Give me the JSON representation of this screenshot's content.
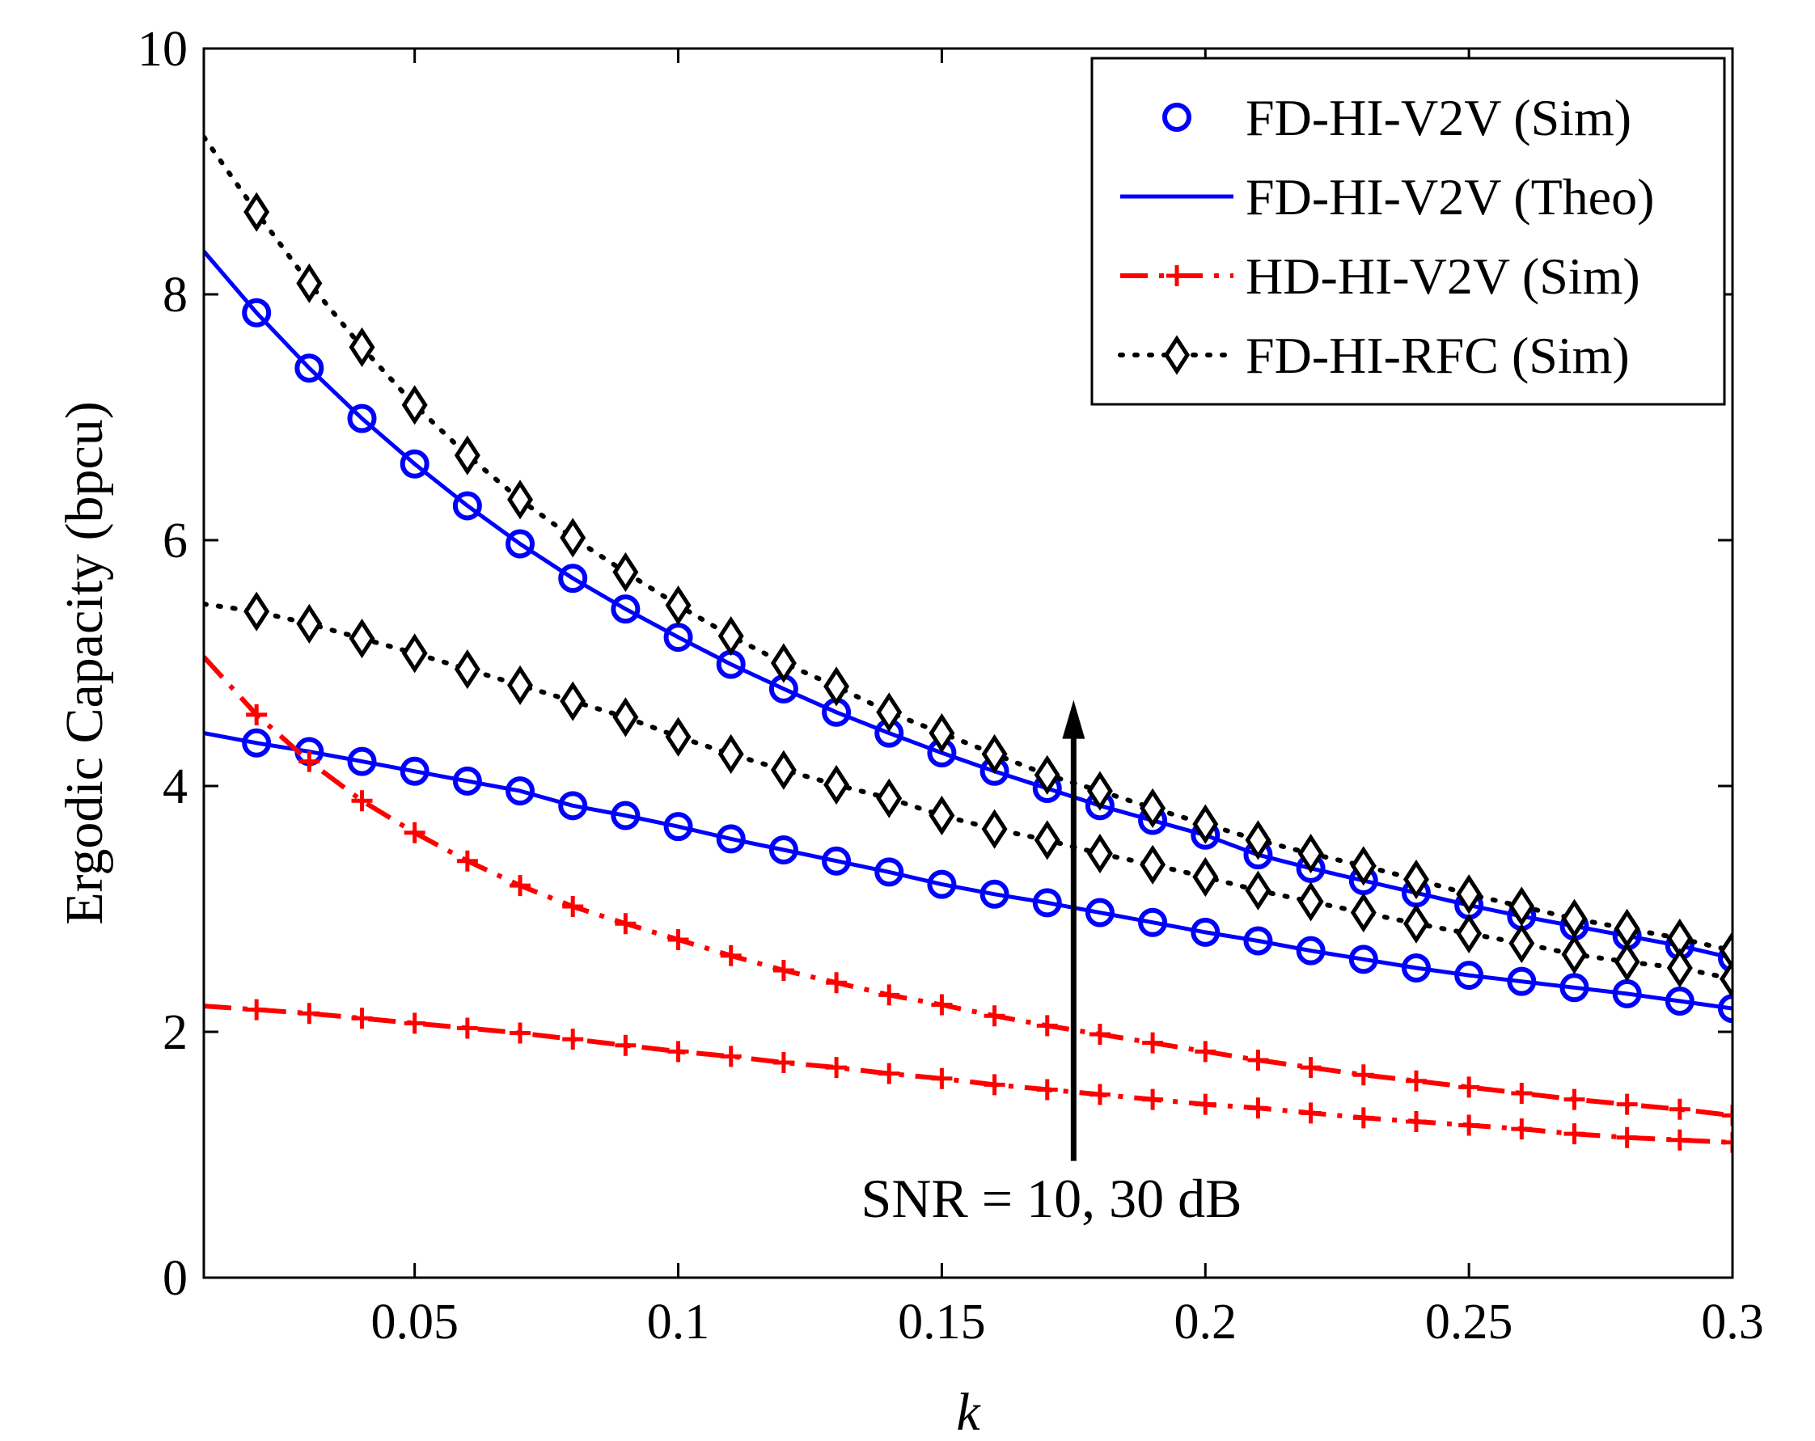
{
  "chart_data": {
    "type": "line",
    "title": "",
    "xlabel": "k",
    "ylabel": "Ergodic Capacity (bpcu)",
    "xlim": [
      0.01,
      0.3
    ],
    "ylim": [
      0,
      10
    ],
    "xticks": [
      0.05,
      0.1,
      0.15,
      0.2,
      0.25,
      0.3
    ],
    "xtick_labels": [
      "0.05",
      "0.1",
      "0.15",
      "0.2",
      "0.25",
      "0.3"
    ],
    "yticks": [
      0,
      2,
      4,
      6,
      8,
      10
    ],
    "ytick_labels": [
      "0",
      "2",
      "4",
      "6",
      "8",
      "10"
    ],
    "grid": false,
    "legend_position": "top-right",
    "legend": [
      {
        "label": "FD-HI-V2V (Sim)",
        "color": "#0000ff",
        "line": "none",
        "marker": "circle"
      },
      {
        "label": "FD-HI-V2V (Theo)",
        "color": "#0000ff",
        "line": "solid",
        "marker": "none"
      },
      {
        "label": "HD-HI-V2V (Sim)",
        "color": "#ff0000",
        "line": "dashdot",
        "marker": "plus"
      },
      {
        "label": "FD-HI-RFC (Sim)",
        "color": "#000000",
        "line": "dotted",
        "marker": "diamond"
      }
    ],
    "annotation": {
      "text": "SNR = 10, 30 dB",
      "arrow_x": 0.175,
      "arrow_from_y": 0.95,
      "arrow_to_y": 4.7
    },
    "x_curve": [
      0.01,
      0.02,
      0.03,
      0.04,
      0.05,
      0.06,
      0.07,
      0.08,
      0.09,
      0.1,
      0.11,
      0.12,
      0.13,
      0.14,
      0.15,
      0.16,
      0.17,
      0.18,
      0.19,
      0.2,
      0.21,
      0.22,
      0.23,
      0.24,
      0.25,
      0.26,
      0.27,
      0.28,
      0.29,
      0.3
    ],
    "x_markers": [
      0.02,
      0.03,
      0.04,
      0.05,
      0.06,
      0.07,
      0.08,
      0.09,
      0.1,
      0.11,
      0.12,
      0.13,
      0.14,
      0.15,
      0.16,
      0.17,
      0.18,
      0.19,
      0.2,
      0.21,
      0.22,
      0.23,
      0.24,
      0.25,
      0.26,
      0.27,
      0.28,
      0.29,
      0.3
    ],
    "series": [
      {
        "name": "FD-HI-V2V (Theo) SNR=30dB",
        "style": "fd_theo",
        "values": [
          8.35,
          7.85,
          7.4,
          6.99,
          6.62,
          6.28,
          5.97,
          5.69,
          5.44,
          5.21,
          4.99,
          4.79,
          4.6,
          4.43,
          4.27,
          4.12,
          3.98,
          3.84,
          3.72,
          3.6,
          3.44,
          3.33,
          3.23,
          3.13,
          3.03,
          2.94,
          2.86,
          2.78,
          2.7,
          2.6
        ]
      },
      {
        "name": "FD-HI-V2V (Theo) SNR=10dB",
        "style": "fd_theo",
        "values": [
          4.43,
          4.35,
          4.28,
          4.2,
          4.12,
          4.04,
          3.96,
          3.84,
          3.76,
          3.67,
          3.57,
          3.48,
          3.39,
          3.3,
          3.2,
          3.12,
          3.05,
          2.97,
          2.89,
          2.81,
          2.74,
          2.66,
          2.59,
          2.52,
          2.46,
          2.41,
          2.36,
          2.31,
          2.25,
          2.19
        ]
      },
      {
        "name": "FD-HI-V2V (Sim) SNR=30dB",
        "style": "fd_sim",
        "values": [
          7.85,
          7.4,
          6.99,
          6.62,
          6.28,
          5.97,
          5.69,
          5.44,
          5.21,
          4.99,
          4.79,
          4.6,
          4.43,
          4.27,
          4.12,
          3.98,
          3.84,
          3.72,
          3.6,
          3.44,
          3.33,
          3.23,
          3.13,
          3.03,
          2.94,
          2.86,
          2.78,
          2.7,
          2.6
        ]
      },
      {
        "name": "FD-HI-V2V (Sim) SNR=10dB",
        "style": "fd_sim",
        "values": [
          4.35,
          4.28,
          4.2,
          4.12,
          4.04,
          3.96,
          3.84,
          3.76,
          3.67,
          3.57,
          3.48,
          3.39,
          3.3,
          3.2,
          3.12,
          3.05,
          2.97,
          2.89,
          2.81,
          2.74,
          2.66,
          2.59,
          2.52,
          2.46,
          2.41,
          2.36,
          2.31,
          2.25,
          2.19
        ]
      },
      {
        "name": "HD-HI-V2V (Sim) SNR=30dB",
        "style": "hd_sim",
        "values": [
          5.05,
          4.58,
          4.2,
          3.88,
          3.62,
          3.39,
          3.19,
          3.02,
          2.88,
          2.75,
          2.62,
          2.5,
          2.4,
          2.3,
          2.22,
          2.13,
          2.05,
          1.98,
          1.91,
          1.84,
          1.77,
          1.71,
          1.65,
          1.6,
          1.55,
          1.5,
          1.45,
          1.41,
          1.37,
          1.32
        ]
      },
      {
        "name": "HD-HI-V2V (Sim) SNR=10dB",
        "style": "hd_sim",
        "values": [
          2.21,
          2.18,
          2.15,
          2.11,
          2.07,
          2.03,
          1.99,
          1.94,
          1.89,
          1.84,
          1.8,
          1.75,
          1.71,
          1.66,
          1.62,
          1.57,
          1.53,
          1.49,
          1.45,
          1.41,
          1.38,
          1.34,
          1.3,
          1.27,
          1.24,
          1.21,
          1.17,
          1.14,
          1.12,
          1.1
        ]
      },
      {
        "name": "FD-HI-RFC (Sim) SNR=30dB",
        "style": "rfc_sim",
        "values": [
          9.28,
          8.67,
          8.09,
          7.57,
          7.1,
          6.69,
          6.33,
          6.02,
          5.74,
          5.47,
          5.22,
          5.0,
          4.81,
          4.6,
          4.43,
          4.26,
          4.09,
          3.96,
          3.82,
          3.69,
          3.56,
          3.45,
          3.35,
          3.24,
          3.12,
          3.02,
          2.92,
          2.84,
          2.76,
          2.66
        ]
      },
      {
        "name": "FD-HI-RFC (Sim) SNR=10dB",
        "style": "rfc_sim",
        "values": [
          5.48,
          5.42,
          5.32,
          5.2,
          5.08,
          4.95,
          4.82,
          4.69,
          4.56,
          4.4,
          4.26,
          4.13,
          4.01,
          3.9,
          3.76,
          3.65,
          3.56,
          3.45,
          3.36,
          3.26,
          3.15,
          3.06,
          2.97,
          2.88,
          2.8,
          2.72,
          2.63,
          2.57,
          2.52,
          2.43
        ]
      }
    ]
  }
}
